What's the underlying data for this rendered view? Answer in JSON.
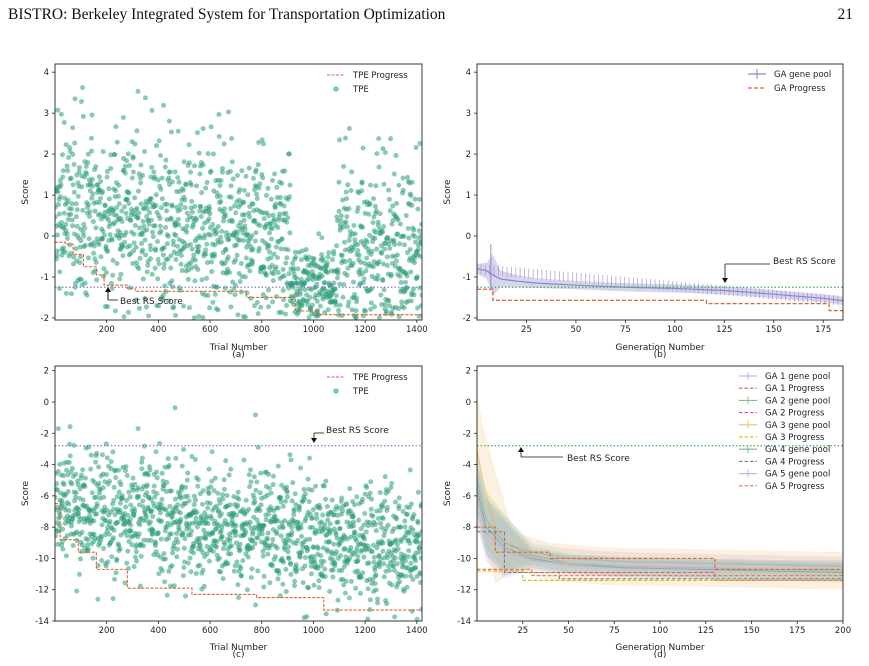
{
  "header": {
    "title": "BISTRO: Berkeley Integrated System for Transportation Optimization",
    "page_number": "21"
  },
  "colors": {
    "tpe": "#2a9d78",
    "progress": "#e0652a",
    "best_rs": "#4caf50",
    "best_rs_c": "#8a7fc6",
    "ga_pool": "#8c86c9"
  },
  "chart_data": [
    {
      "id": "a",
      "type": "scatter",
      "caption": "(a)",
      "xlabel": "Trial Number",
      "ylabel": "Score",
      "xlim": [
        0,
        1420
      ],
      "ylim": [
        -2.05,
        4.2
      ],
      "xticks": [
        200,
        400,
        600,
        800,
        1000,
        1200,
        1400
      ],
      "yticks": [
        -2,
        -1,
        0,
        1,
        2,
        3,
        4
      ],
      "legend": [
        "TPE Progress",
        "TPE"
      ],
      "legend_position": "top-right",
      "annotation": "Best RS Score",
      "best_rs": -1.25,
      "scatter": {
        "n": 1420,
        "seed": 11,
        "center_start": 0.6,
        "center_end": -0.4,
        "spread": 1.05,
        "dip_center": 1000,
        "dip_value": -1.2
      },
      "progress_steps": [
        [
          0,
          -0.15
        ],
        [
          40,
          -0.2
        ],
        [
          70,
          -0.45
        ],
        [
          110,
          -0.75
        ],
        [
          160,
          -0.95
        ],
        [
          190,
          -1.2
        ],
        [
          280,
          -1.28
        ],
        [
          310,
          -1.35
        ],
        [
          740,
          -1.5
        ],
        [
          930,
          -1.83
        ],
        [
          1020,
          -1.92
        ],
        [
          1420,
          -1.92
        ]
      ]
    },
    {
      "id": "b",
      "type": "line",
      "caption": "(b)",
      "xlabel": "Generation Number",
      "ylabel": "Score",
      "xlim": [
        0,
        185
      ],
      "ylim": [
        -2.05,
        4.2
      ],
      "xticks": [
        25,
        50,
        75,
        100,
        125,
        150,
        175
      ],
      "yticks": [
        -2,
        -1,
        0,
        1,
        2,
        3,
        4
      ],
      "legend": [
        "GA gene pool",
        "GA Progress"
      ],
      "legend_position": "top-right",
      "annotation": "Best RS Score",
      "best_rs": -1.25,
      "series": [
        {
          "name": "GA gene pool",
          "x": [
            0,
            5,
            8,
            12,
            20,
            30,
            50,
            75,
            100,
            125,
            150,
            175,
            185
          ],
          "y": [
            -0.8,
            -0.85,
            -0.95,
            -1.05,
            -1.1,
            -1.15,
            -1.2,
            -1.25,
            -1.28,
            -1.33,
            -1.42,
            -1.52,
            -1.58
          ],
          "band": [
            0.12,
            0.2,
            0.5,
            0.2,
            0.15,
            0.12,
            0.1,
            0.1,
            0.1,
            0.1,
            0.1,
            0.1,
            0.1
          ]
        },
        {
          "name": "GA Progress",
          "steps": [
            [
              0,
              -1.3
            ],
            [
              8,
              -1.57
            ],
            [
              116,
              -1.65
            ],
            [
              178,
              -1.82
            ],
            [
              185,
              -1.82
            ]
          ]
        }
      ]
    },
    {
      "id": "c",
      "type": "scatter",
      "caption": "(c)",
      "xlabel": "Trial Number",
      "ylabel": "Score",
      "xlim": [
        0,
        1420
      ],
      "ylim": [
        -14,
        2.3
      ],
      "xticks": [
        200,
        400,
        600,
        800,
        1000,
        1200,
        1400
      ],
      "yticks": [
        -14,
        -12,
        -10,
        -8,
        -6,
        -4,
        -2,
        0,
        2
      ],
      "legend": [
        "TPE Progress",
        "TPE"
      ],
      "legend_position": "top-right",
      "annotation": "Best RS Score",
      "best_rs": -2.8,
      "scatter": {
        "n": 1420,
        "seed": 23,
        "center_start": -6.5,
        "center_end": -9.5,
        "spread": 2.0,
        "dip_center": -1,
        "dip_value": 0
      },
      "progress_steps": [
        [
          0,
          -6.5
        ],
        [
          20,
          -8.8
        ],
        [
          90,
          -9.6
        ],
        [
          160,
          -10.7
        ],
        [
          280,
          -11.9
        ],
        [
          530,
          -12.3
        ],
        [
          780,
          -12.5
        ],
        [
          1040,
          -13.3
        ],
        [
          1420,
          -13.3
        ]
      ]
    },
    {
      "id": "d",
      "type": "line",
      "caption": "(d)",
      "xlabel": "Generation Number",
      "ylabel": "Score",
      "xlim": [
        0,
        200
      ],
      "ylim": [
        -14,
        2.3
      ],
      "xticks": [
        25,
        50,
        75,
        100,
        125,
        150,
        175,
        200
      ],
      "yticks": [
        -14,
        -12,
        -10,
        -8,
        -6,
        -4,
        -2,
        0,
        2
      ],
      "legend": [
        "GA 1 gene pool",
        "GA 1 Progress",
        "GA 2 gene pool",
        "GA 2 Progress",
        "GA 3 gene pool",
        "GA 3 Progress",
        "GA 4 gene pool",
        "GA 4 Progress",
        "GA 5 gene pool",
        "GA 5 Progress"
      ],
      "legend_position": "top-right",
      "annotation": "Best RS Score",
      "best_rs": -2.8,
      "series": [
        {
          "name": "GA 1 gene pool",
          "color": "#b4b0d8",
          "x": [
            0,
            5,
            15,
            30,
            50,
            80,
            120,
            160,
            200
          ],
          "y": [
            -6,
            -8,
            -9,
            -9.6,
            -10,
            -10.2,
            -10.3,
            -10.4,
            -10.5
          ],
          "band": 1.0
        },
        {
          "name": "GA 1 Progress",
          "color": "#e0652a",
          "steps": [
            [
              0,
              -8.0
            ],
            [
              10,
              -9.6
            ],
            [
              40,
              -10.0
            ],
            [
              130,
              -10.7
            ],
            [
              200,
              -10.8
            ]
          ]
        },
        {
          "name": "GA 2 gene pool",
          "color": "#7cc47c",
          "x": [
            0,
            5,
            15,
            30,
            50,
            80,
            120,
            160,
            200
          ],
          "y": [
            -5,
            -7.5,
            -9,
            -9.8,
            -10.3,
            -10.5,
            -10.6,
            -10.7,
            -10.8
          ],
          "band": 1.0
        },
        {
          "name": "GA 2 Progress",
          "color": "#e6489a",
          "steps": [
            [
              0,
              -10.7
            ],
            [
              20,
              -10.9
            ],
            [
              130,
              -11.4
            ],
            [
              200,
              -11.6
            ]
          ]
        },
        {
          "name": "GA 3 gene pool",
          "color": "#f0c070",
          "x": [
            0,
            3,
            10,
            20,
            40,
            70,
            120,
            160,
            200
          ],
          "y": [
            -3,
            -5,
            -8,
            -9.5,
            -10.2,
            -10.5,
            -10.6,
            -10.7,
            -10.8
          ],
          "band": 2.0
        },
        {
          "name": "GA 3 Progress",
          "color": "#d8b000",
          "steps": [
            [
              0,
              -10.8
            ],
            [
              25,
              -11.4
            ],
            [
              200,
              -11.4
            ]
          ]
        },
        {
          "name": "GA 4 gene pool",
          "color": "#66b8a0",
          "x": [
            0,
            5,
            15,
            30,
            50,
            80,
            120,
            160,
            200
          ],
          "y": [
            -5.5,
            -8,
            -9.3,
            -10,
            -10.4,
            -10.6,
            -10.7,
            -10.8,
            -10.9
          ],
          "band": 1.0
        },
        {
          "name": "GA 4 Progress",
          "color": "#7a7a9a",
          "steps": [
            [
              0,
              -8.3
            ],
            [
              15,
              -10.9
            ],
            [
              45,
              -11.3
            ],
            [
              200,
              -11.3
            ]
          ]
        },
        {
          "name": "GA 5 gene pool",
          "color": "#c9a6dc",
          "x": [
            0,
            5,
            15,
            30,
            50,
            80,
            120,
            160,
            200
          ],
          "y": [
            -6,
            -8.4,
            -9.5,
            -10.1,
            -10.4,
            -10.5,
            -10.6,
            -10.7,
            -10.7
          ],
          "band": 1.0
        },
        {
          "name": "GA 5 Progress",
          "color": "#e07a3a",
          "steps": [
            [
              0,
              -10.7
            ],
            [
              30,
              -11.1
            ],
            [
              200,
              -11.2
            ]
          ]
        }
      ]
    }
  ]
}
